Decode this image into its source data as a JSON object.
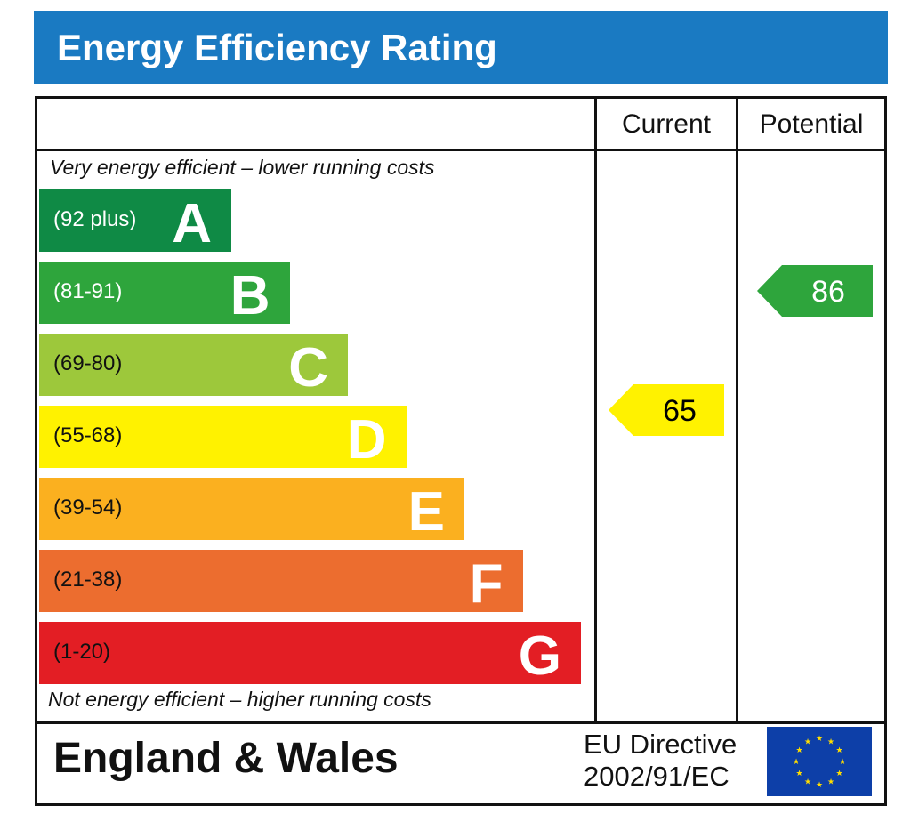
{
  "header": {
    "title": "Energy Efficiency Rating"
  },
  "columns": {
    "current": "Current",
    "potential": "Potential"
  },
  "notes": {
    "top": "Very energy efficient – lower running costs",
    "bottom": "Not energy efficient – higher running costs"
  },
  "footer": {
    "country": "England & Wales",
    "directive_line1": "EU Directive",
    "directive_line2": "2002/91/EC"
  },
  "chart_data": {
    "type": "bar",
    "title": "Energy Efficiency Rating",
    "bands": [
      {
        "letter": "A",
        "range": "(92 plus)",
        "color": "#0f8a45",
        "text_color": "#ffffff"
      },
      {
        "letter": "B",
        "range": "(81-91)",
        "color": "#2ea53c",
        "text_color": "#ffffff"
      },
      {
        "letter": "C",
        "range": "(69-80)",
        "color": "#9dc83b",
        "text_color": "#111111"
      },
      {
        "letter": "D",
        "range": "(55-68)",
        "color": "#fff200",
        "text_color": "#111111"
      },
      {
        "letter": "E",
        "range": "(39-54)",
        "color": "#fbb01f",
        "text_color": "#111111"
      },
      {
        "letter": "F",
        "range": "(21-38)",
        "color": "#ec6d2f",
        "text_color": "#111111"
      },
      {
        "letter": "G",
        "range": "(1-20)",
        "color": "#e31e24",
        "text_color": "#111111"
      }
    ],
    "current": {
      "value": 65,
      "band": "D",
      "color": "#fff200",
      "text_color": "#000000"
    },
    "potential": {
      "value": 86,
      "band": "B",
      "color": "#2ea53c",
      "text_color": "#ffffff"
    }
  }
}
